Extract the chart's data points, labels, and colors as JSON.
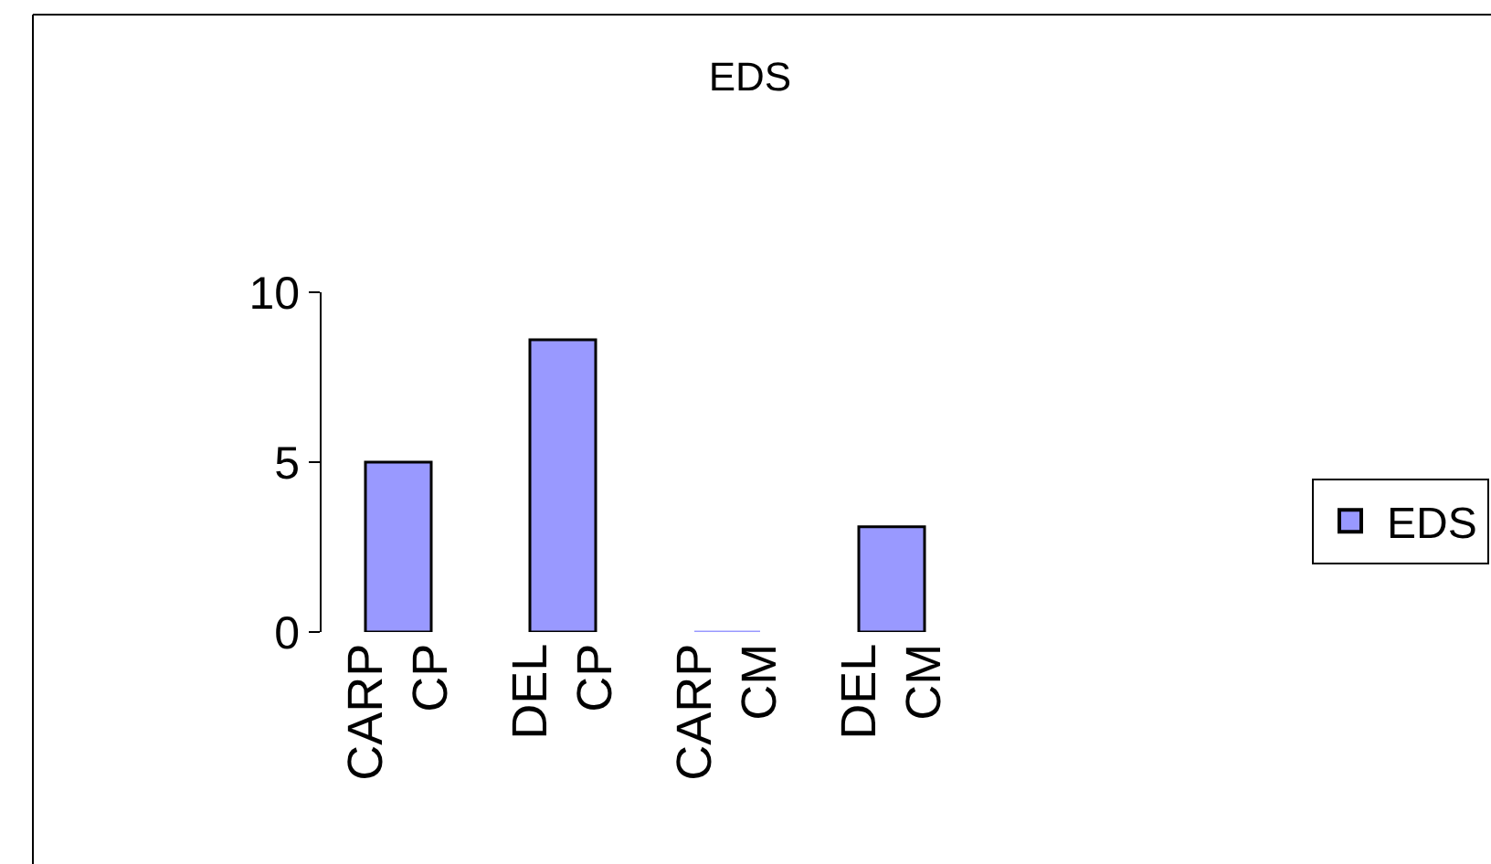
{
  "chart_data": {
    "type": "bar",
    "title": "EDS",
    "categories": [
      "CARP\nCP",
      "DEL\nCP",
      "CARP\nCM",
      "DEL\nCM"
    ],
    "series": [
      {
        "name": "EDS",
        "color": "#9999ff",
        "values": [
          5,
          8.6,
          0,
          3.1
        ]
      }
    ],
    "ylim": [
      0,
      10
    ],
    "yticks": [
      0,
      5,
      10
    ],
    "grid": false,
    "legend": "right"
  }
}
